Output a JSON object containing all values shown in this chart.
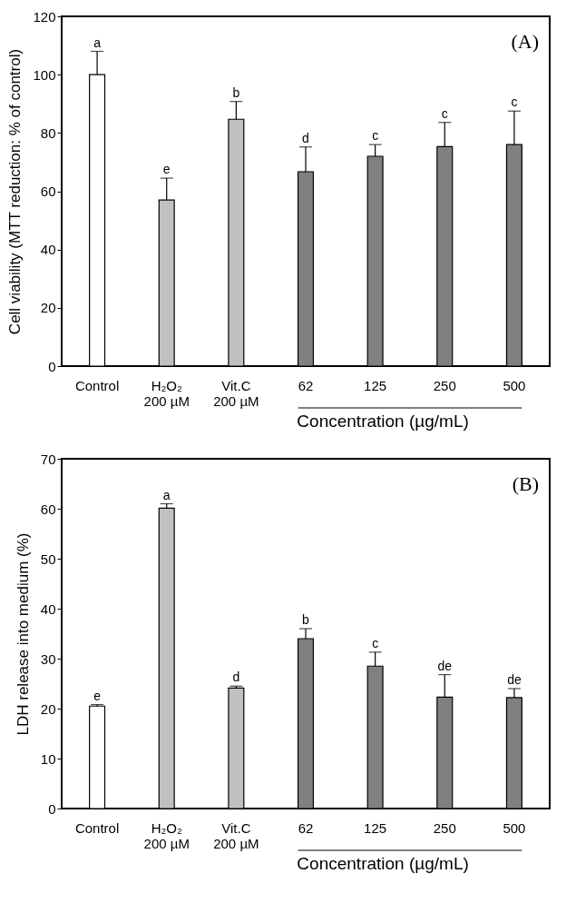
{
  "chart_data": [
    {
      "type": "bar",
      "categories": [
        "Control",
        "H₂O₂ 200 µM",
        "Vit.C 200 µM",
        "62",
        "125",
        "250",
        "500"
      ],
      "ylabel": "Cell viability (MTT reduction: % of control)",
      "values": [
        100,
        57,
        84.7,
        66.7,
        72,
        75.3,
        76
      ],
      "errors": [
        [
          100,
          108
        ],
        [
          57,
          64.5
        ],
        [
          84.7,
          90.8
        ],
        [
          66.7,
          75.2
        ],
        [
          72,
          76
        ],
        [
          75.3,
          83.6
        ],
        [
          76,
          87.5
        ]
      ],
      "colors": [
        "#ffffff",
        "#c0c0c0",
        "#c0c0c0",
        "#808080",
        "#808080",
        "#808080",
        "#808080"
      ],
      "ylim": [
        0,
        120
      ],
      "yticks": [
        0,
        20,
        40,
        60,
        80,
        100,
        120
      ],
      "grid": false,
      "annotations": [
        {
          "text": "a",
          "x": "Control",
          "y": 108
        },
        {
          "text": "e",
          "x": "H₂O₂ 200 µM",
          "y": 64.5
        },
        {
          "text": "b",
          "x": "Vit.C 200 µM",
          "y": 90.8
        },
        {
          "text": "d",
          "x": "62",
          "y": 75.2
        },
        {
          "text": "c",
          "x": "125",
          "y": 76
        },
        {
          "text": "c",
          "x": "250",
          "y": 83.6
        },
        {
          "text": "c",
          "x": "500",
          "y": 87.5
        },
        "(A)",
        "Concentration (µg/mL)"
      ]
    },
    {
      "type": "bar",
      "categories": [
        "Control",
        "H₂O₂ 200 µM",
        "Vit.C 200 µM",
        "62",
        "125",
        "250",
        "500"
      ],
      "ylabel": "LDH release into medium (%)",
      "values": [
        20.5,
        60.1,
        24.1,
        34,
        28.5,
        22.3,
        22.2
      ],
      "errors": [
        [
          20.5,
          20.8
        ],
        [
          60.1,
          61
        ],
        [
          24.1,
          24.5
        ],
        [
          34,
          36
        ],
        [
          28.5,
          31.3
        ],
        [
          22.3,
          26.8
        ],
        [
          22.2,
          24
        ]
      ],
      "colors": [
        "#ffffff",
        "#c0c0c0",
        "#c0c0c0",
        "#808080",
        "#808080",
        "#808080",
        "#808080"
      ],
      "ylim": [
        0,
        70
      ],
      "yticks": [
        0,
        10,
        20,
        30,
        40,
        50,
        60,
        70
      ],
      "grid": false,
      "annotations": [
        {
          "text": "e",
          "x": "Control",
          "y": 20.8
        },
        {
          "text": "a",
          "x": "H₂O₂ 200 µM",
          "y": 61
        },
        {
          "text": "d",
          "x": "Vit.C 200 µM",
          "y": 24.5
        },
        {
          "text": "b",
          "x": "62",
          "y": 36
        },
        {
          "text": "c",
          "x": "125",
          "y": 31.3
        },
        {
          "text": "de",
          "x": "250",
          "y": 26.8
        },
        {
          "text": "de",
          "x": "500",
          "y": 24
        },
        "(B)",
        "Concentration (µg/mL)"
      ]
    }
  ]
}
